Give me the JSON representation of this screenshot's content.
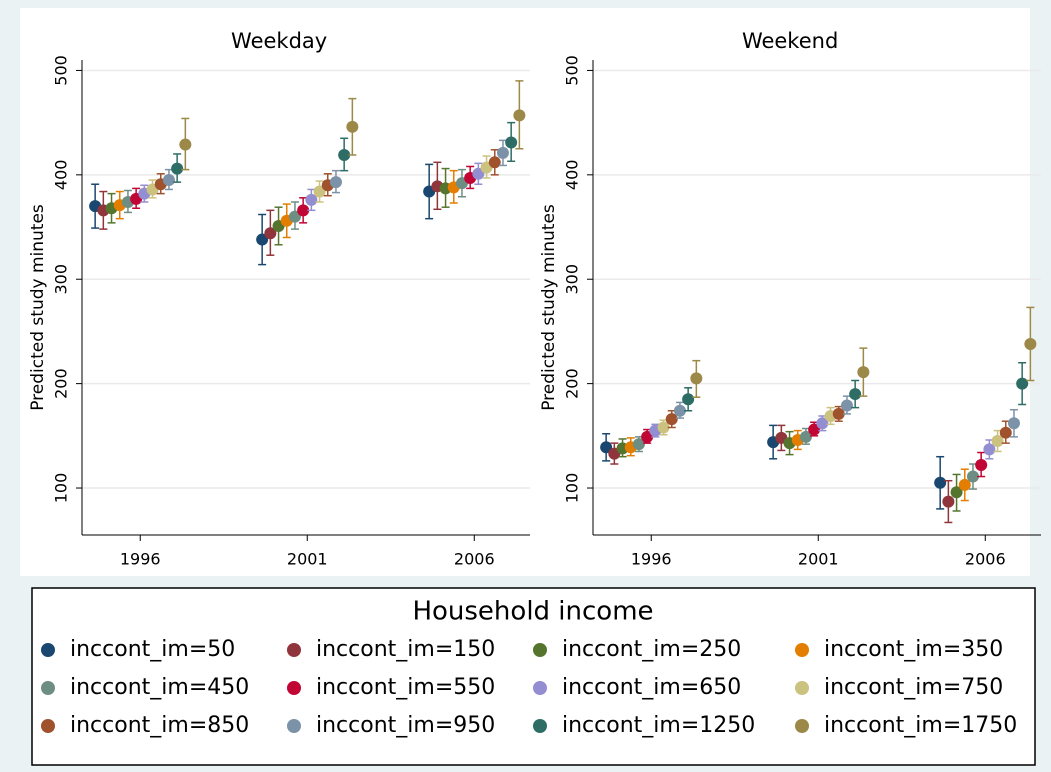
{
  "chart_data": {
    "type": "scatter",
    "panels": [
      "Weekday",
      "Weekend"
    ],
    "ylabel": "Predicted study minutes",
    "categories": [
      "1996",
      "2001",
      "2006"
    ],
    "ylim": [
      55,
      510
    ],
    "yticks": [
      100,
      200,
      300,
      400,
      500
    ],
    "grid": true,
    "legend_title": "Household income",
    "legend_position": "bottom",
    "series": [
      {
        "name": "inccont_im=50",
        "color": "#1a476f",
        "values": [
          [
            370,
            338,
            384
          ],
          [
            139,
            144,
            105
          ]
        ],
        "lower": [
          [
            349,
            314,
            358
          ],
          [
            126,
            128,
            80
          ]
        ],
        "upper": [
          [
            391,
            362,
            410
          ],
          [
            152,
            160,
            130
          ]
        ]
      },
      {
        "name": "inccont_im=150",
        "color": "#90353b",
        "values": [
          [
            366,
            344,
            389
          ],
          [
            133,
            148,
            87
          ]
        ],
        "lower": [
          [
            348,
            323,
            367
          ],
          [
            123,
            136,
            67
          ]
        ],
        "upper": [
          [
            384,
            366,
            412
          ],
          [
            143,
            160,
            107
          ]
        ]
      },
      {
        "name": "inccont_im=250",
        "color": "#55752f",
        "values": [
          [
            368,
            351,
            387
          ],
          [
            138,
            143,
            96
          ]
        ],
        "lower": [
          [
            354,
            333,
            369
          ],
          [
            130,
            132,
            78
          ]
        ],
        "upper": [
          [
            382,
            369,
            406
          ],
          [
            147,
            154,
            113
          ]
        ]
      },
      {
        "name": "inccont_im=350",
        "color": "#e37e00",
        "values": [
          [
            371,
            356,
            388
          ],
          [
            139,
            146,
            103
          ]
        ],
        "lower": [
          [
            358,
            340,
            373
          ],
          [
            131,
            137,
            88
          ]
        ],
        "upper": [
          [
            384,
            372,
            404
          ],
          [
            148,
            155,
            118
          ]
        ]
      },
      {
        "name": "inccont_im=450",
        "color": "#6e8e84",
        "values": [
          [
            374,
            360,
            392
          ],
          [
            142,
            149,
            111
          ]
        ],
        "lower": [
          [
            364,
            348,
            379
          ],
          [
            135,
            142,
            99
          ]
        ],
        "upper": [
          [
            385,
            374,
            405
          ],
          [
            149,
            157,
            123
          ]
        ]
      },
      {
        "name": "inccont_im=550",
        "color": "#c10534",
        "values": [
          [
            377,
            366,
            397
          ],
          [
            149,
            156,
            122
          ]
        ],
        "lower": [
          [
            368,
            354,
            387
          ],
          [
            143,
            150,
            111
          ]
        ],
        "upper": [
          [
            387,
            378,
            408
          ],
          [
            156,
            163,
            134
          ]
        ]
      },
      {
        "name": "inccont_im=650",
        "color": "#938dd2",
        "values": [
          [
            382,
            376,
            401
          ],
          [
            155,
            162,
            137
          ]
        ],
        "lower": [
          [
            374,
            366,
            391
          ],
          [
            149,
            155,
            128
          ]
        ],
        "upper": [
          [
            390,
            386,
            411
          ],
          [
            161,
            169,
            146
          ]
        ]
      },
      {
        "name": "inccont_im=750",
        "color": "#cac27e",
        "values": [
          [
            386,
            384,
            407
          ],
          [
            158,
            169,
            145
          ]
        ],
        "lower": [
          [
            378,
            374,
            397
          ],
          [
            151,
            161,
            135
          ]
        ],
        "upper": [
          [
            395,
            394,
            418
          ],
          [
            165,
            177,
            155
          ]
        ]
      },
      {
        "name": "inccont_im=850",
        "color": "#a0522d",
        "values": [
          [
            391,
            390,
            412
          ],
          [
            166,
            171,
            153
          ]
        ],
        "lower": [
          [
            382,
            380,
            400
          ],
          [
            158,
            164,
            143
          ]
        ],
        "upper": [
          [
            401,
            401,
            424
          ],
          [
            174,
            178,
            164
          ]
        ]
      },
      {
        "name": "inccont_im=950",
        "color": "#7b92a8",
        "values": [
          [
            395,
            393,
            421
          ],
          [
            174,
            179,
            162
          ]
        ],
        "lower": [
          [
            386,
            383,
            409
          ],
          [
            167,
            171,
            149
          ]
        ],
        "upper": [
          [
            405,
            404,
            433
          ],
          [
            182,
            188,
            175
          ]
        ]
      },
      {
        "name": "inccont_im=1250",
        "color": "#2d6d66",
        "values": [
          [
            406,
            419,
            431
          ],
          [
            185,
            190,
            200
          ]
        ],
        "lower": [
          [
            393,
            404,
            413
          ],
          [
            174,
            177,
            180
          ]
        ],
        "upper": [
          [
            420,
            435,
            450
          ],
          [
            196,
            203,
            220
          ]
        ]
      },
      {
        "name": "inccont_im=1750",
        "color": "#9c8847",
        "values": [
          [
            429,
            446,
            457
          ],
          [
            205,
            211,
            238
          ]
        ],
        "lower": [
          [
            405,
            419,
            425
          ],
          [
            187,
            188,
            203
          ]
        ],
        "upper": [
          [
            454,
            473,
            490
          ],
          [
            222,
            234,
            273
          ]
        ]
      }
    ]
  }
}
